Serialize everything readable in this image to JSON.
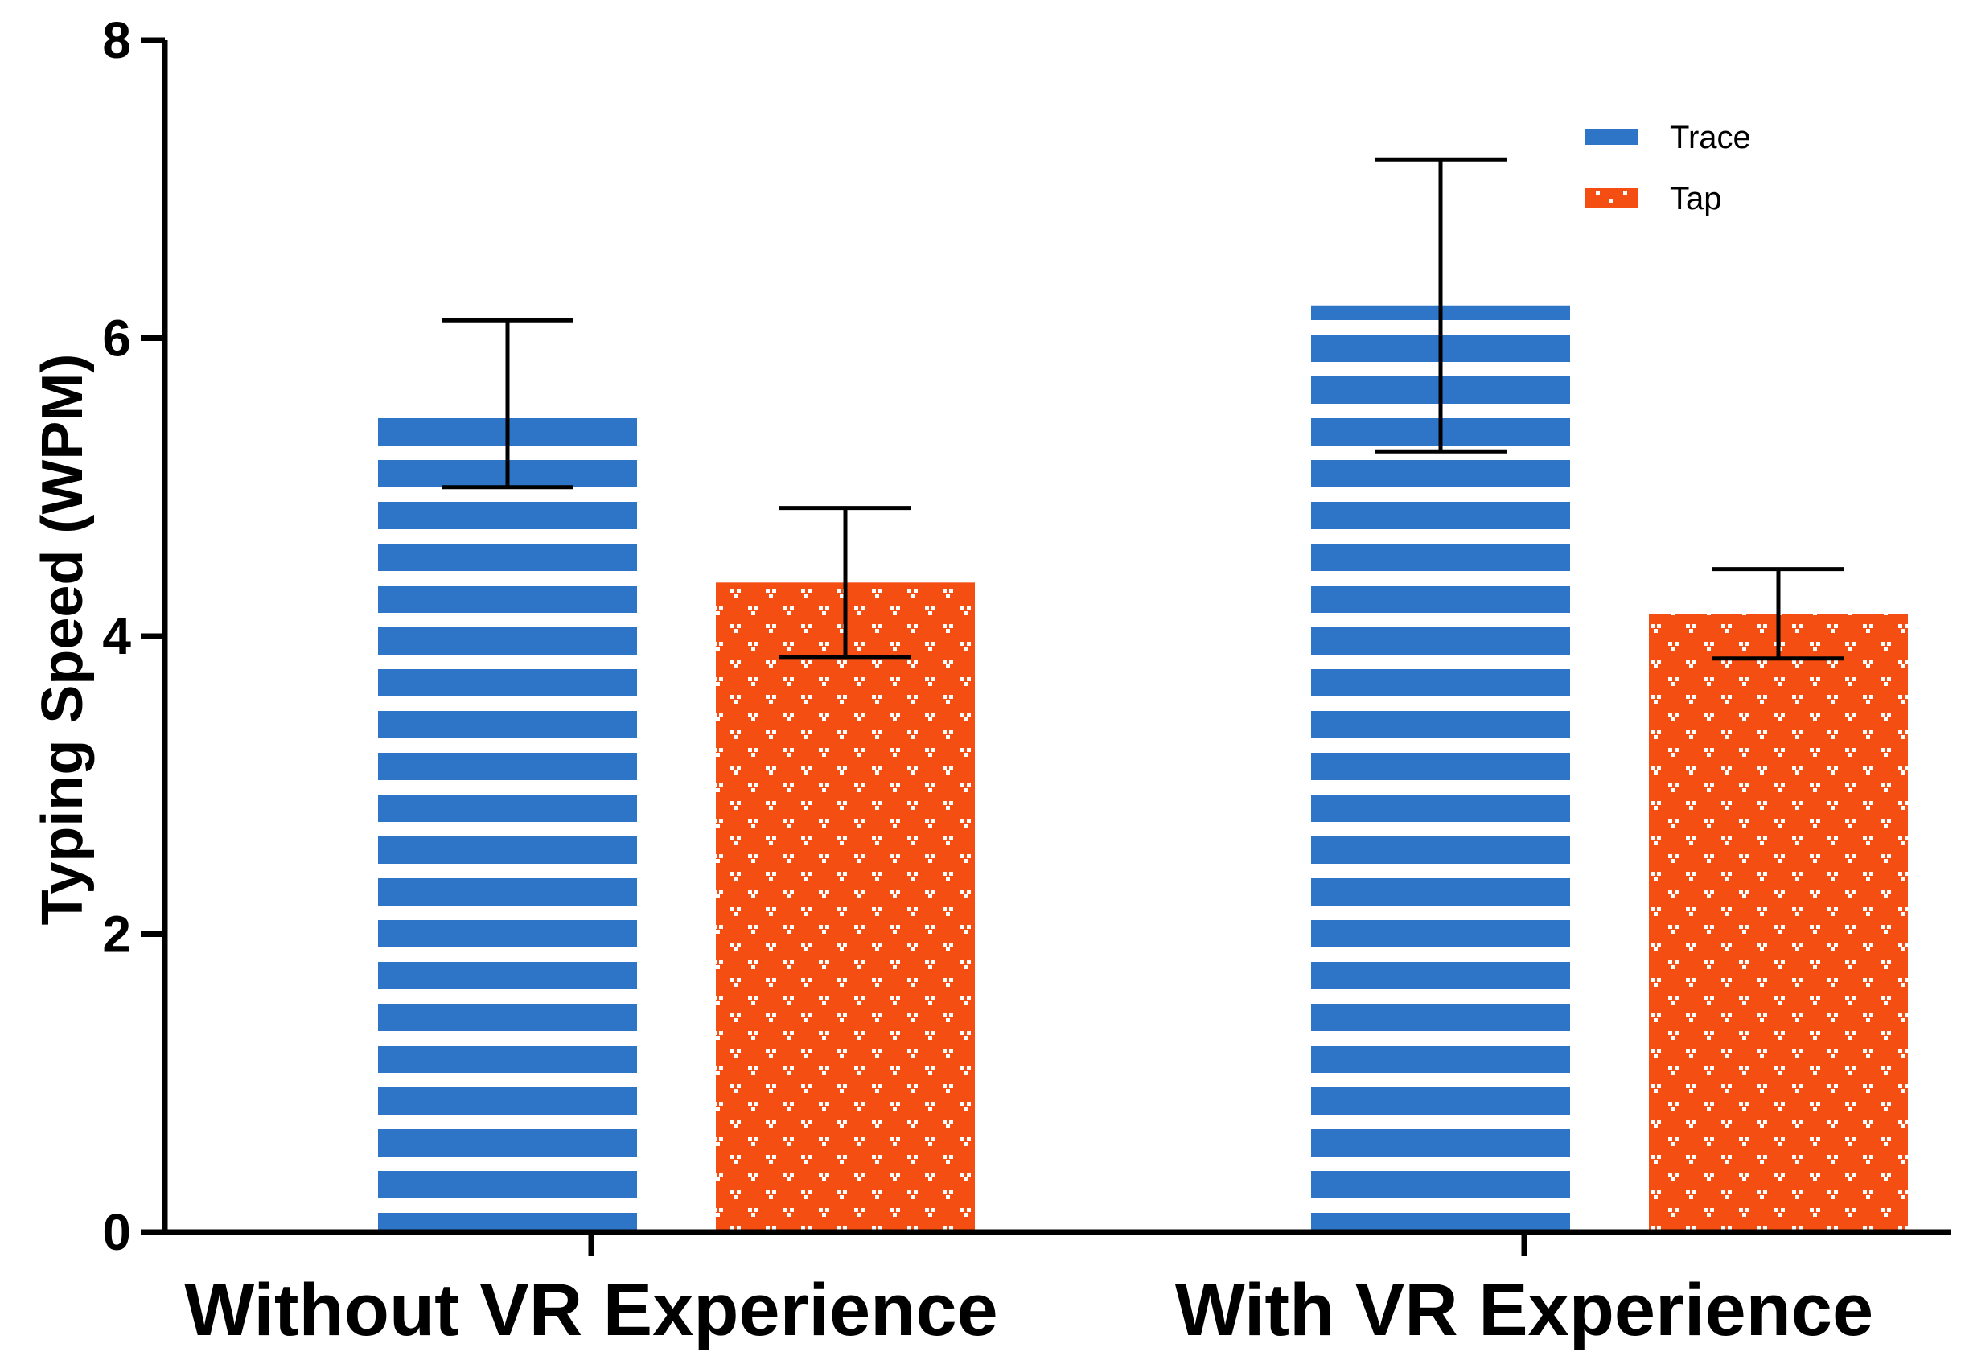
{
  "chart_data": {
    "type": "bar",
    "title": "",
    "xlabel": "",
    "ylabel": "Typing Speed (WPM)",
    "ylim": [
      0,
      8
    ],
    "yticks": [
      0,
      2,
      4,
      6,
      8
    ],
    "grid": false,
    "legend_position": "top-right",
    "categories": [
      "Without VR Experience",
      "With VR Experience"
    ],
    "series": [
      {
        "name": "Trace",
        "color": "#2E74C7",
        "pattern": "horizontal-stripes",
        "values": [
          5.56,
          6.22
        ],
        "error": [
          0.56,
          0.98
        ]
      },
      {
        "name": "Tap",
        "color": "#F44E12",
        "pattern": "dots",
        "values": [
          4.36,
          4.15
        ],
        "error": [
          0.5,
          0.3
        ]
      }
    ]
  }
}
